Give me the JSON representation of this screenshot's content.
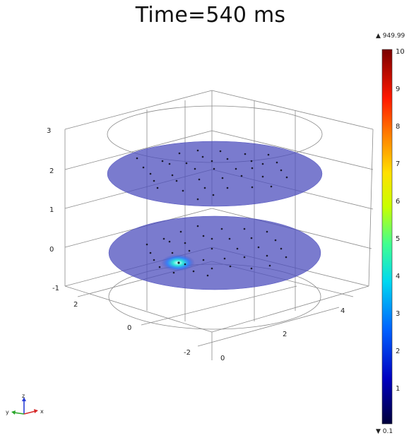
{
  "title": "Time=540 ms",
  "z_axis_ticks": [
    "3",
    "2",
    "1",
    "0",
    "-1"
  ],
  "y_axis_ticks": [
    "2",
    "0",
    "-2"
  ],
  "x_axis_ticks": [
    "0",
    "2",
    "4"
  ],
  "colorbar": {
    "max_label": "949.99",
    "min_label": "0.1",
    "ticks": [
      "10",
      "9",
      "8",
      "7",
      "6",
      "5",
      "4",
      "3",
      "2",
      "1"
    ],
    "max_arrow": "▲",
    "min_arrow": "▼",
    "colors": [
      "#000066",
      "#0000ff",
      "#00a0ff",
      "#00ffc0",
      "#a0ff00",
      "#ffff00",
      "#ff9000",
      "#ff0000",
      "#a00000",
      "#660000"
    ]
  },
  "triad": {
    "z": "z",
    "y": "y",
    "x": "x"
  },
  "colors": {
    "disk_fill": "#4e4fbd",
    "frame": "#888888",
    "hotspot": "#20e0e0"
  }
}
